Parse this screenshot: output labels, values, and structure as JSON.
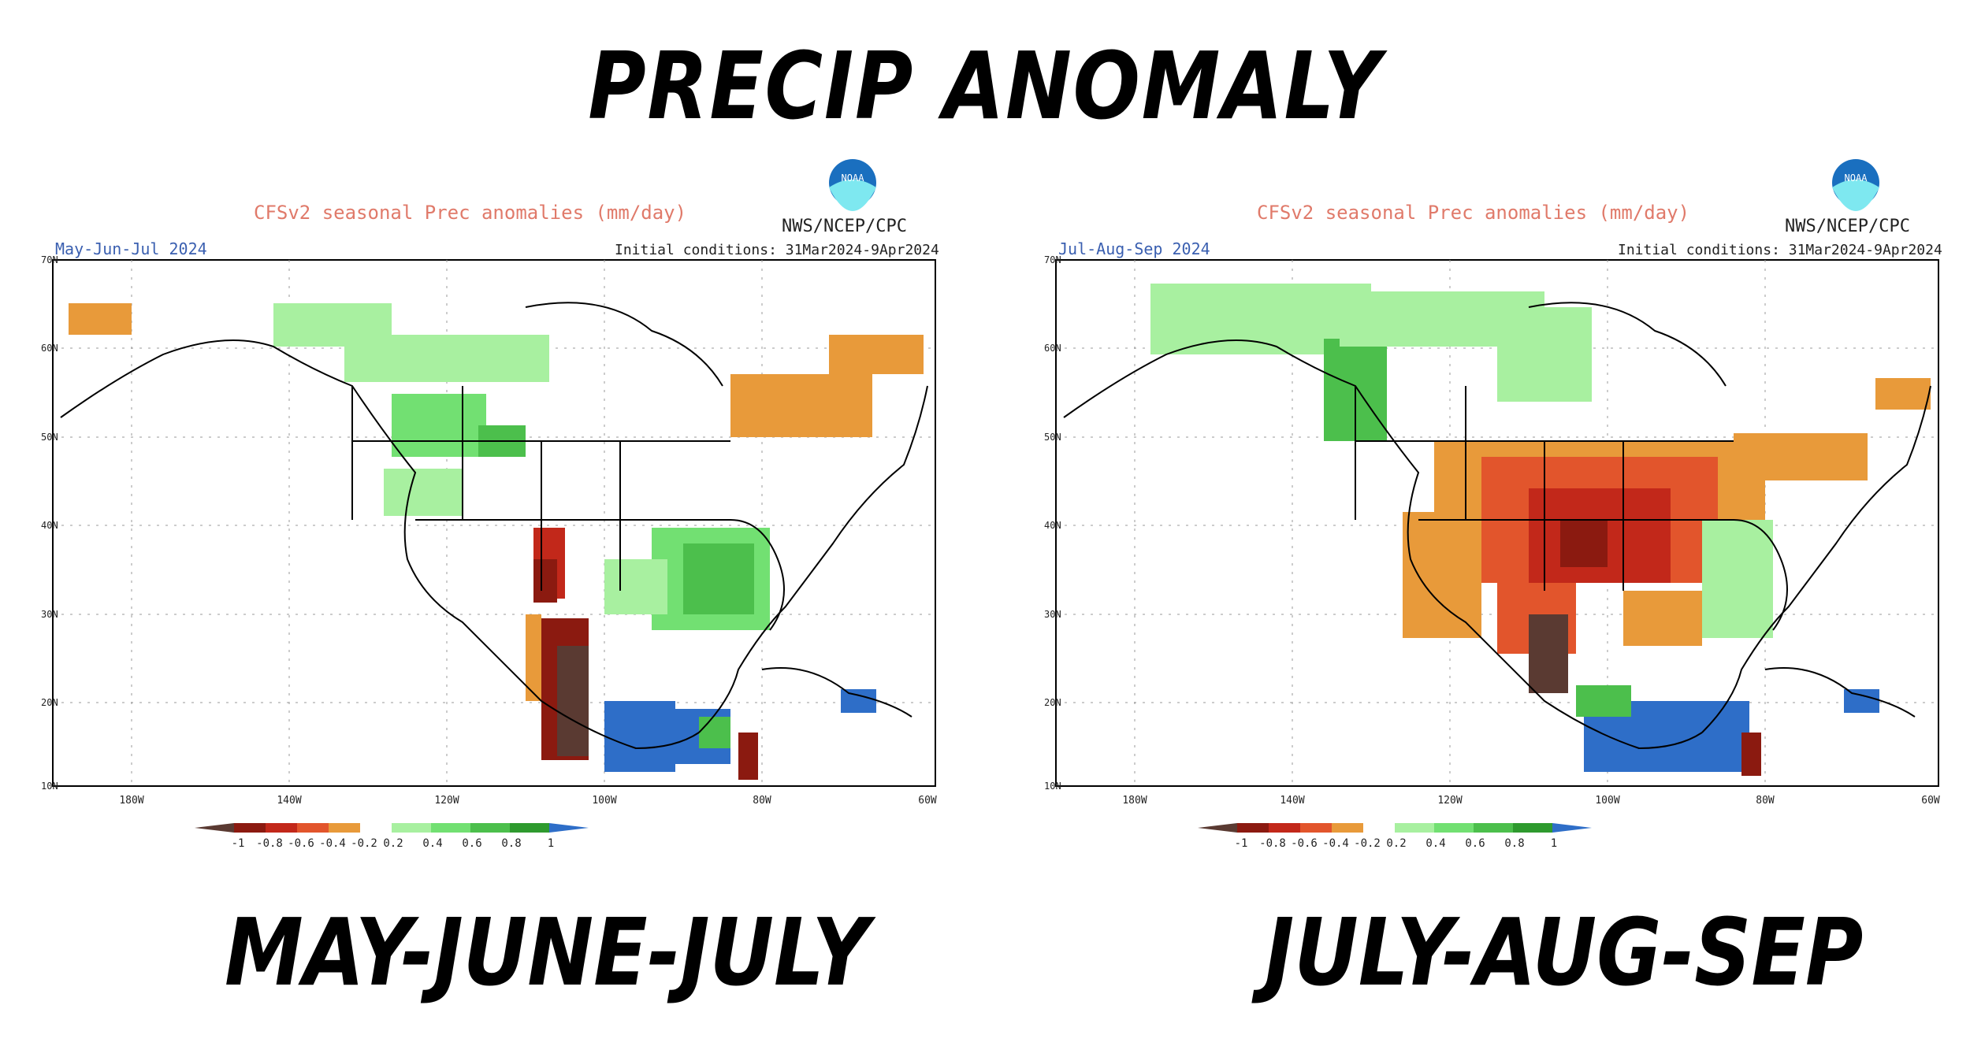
{
  "headline": "PRECIP ANOMALY",
  "colors": {
    "dry_strong": "#5a3a32",
    "dry_1": "#8b1a10",
    "dry_2": "#c2281a",
    "dry_3": "#e2552c",
    "dry_4": "#e89a3a",
    "wet_1": "#a8f0a0",
    "wet_2": "#72e072",
    "wet_3": "#4cbf4c",
    "wet_4": "#2e9a2e",
    "wet_strong": "#2e6ec8"
  },
  "panels": [
    {
      "label": "MAY-JUNE-JULY",
      "title": "CFSv2 seasonal Prec anomalies (mm/day)",
      "agency": "NWS/NCEP/CPC",
      "logo_text": "NOAA",
      "period": "May-Jun-Jul 2024",
      "init": "Initial conditions: 31Mar2024-9Apr2024",
      "lat_labels": [
        "70N",
        "60N",
        "50N",
        "40N",
        "30N",
        "20N",
        "10N"
      ],
      "lon_labels": [
        "180W",
        "140W",
        "120W",
        "100W",
        "80W",
        "60W"
      ],
      "legend_labels": [
        "-1",
        "-0.8",
        "-0.6",
        "-0.4",
        "-0.2",
        "0.2",
        "0.4",
        "0.6",
        "0.8",
        "1"
      ]
    },
    {
      "label": "JULY-AUG-SEP",
      "title": "CFSv2 seasonal Prec anomalies (mm/day)",
      "agency": "NWS/NCEP/CPC",
      "logo_text": "NOAA",
      "period": "Jul-Aug-Sep 2024",
      "init": "Initial conditions: 31Mar2024-9Apr2024",
      "lat_labels": [
        "70N",
        "60N",
        "50N",
        "40N",
        "30N",
        "20N",
        "10N"
      ],
      "lon_labels": [
        "180W",
        "140W",
        "120W",
        "100W",
        "80W",
        "60W"
      ],
      "legend_labels": [
        "-1",
        "-0.8",
        "-0.6",
        "-0.4",
        "-0.2",
        "0.2",
        "0.4",
        "0.6",
        "0.8",
        "1"
      ]
    }
  ]
}
